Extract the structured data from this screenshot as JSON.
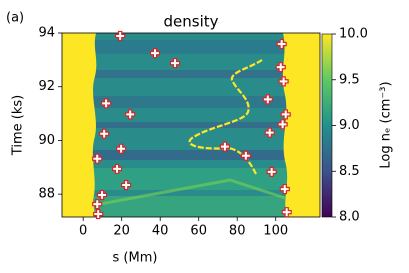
{
  "panel_label": "(a)",
  "chart_data": {
    "type": "scatter",
    "title": "density",
    "x_label": "s (Mm)",
    "y_label": "Time (ks)",
    "x": [
      19.2,
      37.3,
      47.7,
      103.1,
      102.6,
      104.1,
      95.9,
      11.9,
      24.4,
      105.2,
      103.6,
      10.9,
      96.9,
      19.7,
      73.6,
      84.5,
      7.3,
      97.9,
      17.6,
      22.3,
      104.7,
      9.8,
      7.3,
      105.7,
      7.8
    ],
    "values": [
      93.89,
      93.25,
      92.88,
      93.59,
      92.73,
      92.2,
      91.53,
      91.38,
      90.97,
      90.97,
      90.6,
      90.25,
      90.29,
      89.69,
      89.77,
      89.43,
      89.32,
      88.83,
      88.94,
      88.34,
      88.19,
      87.97,
      87.63,
      87.33,
      87.26
    ],
    "marker_color": "#d62728",
    "xlim": [
      -11,
      123
    ],
    "ylim": [
      87.15,
      94.0
    ],
    "xticks": [
      0,
      20,
      40,
      60,
      80,
      100
    ],
    "yticks": [
      88,
      90,
      92,
      94
    ],
    "colorbar": {
      "label": "Log nₑ (cm⁻³)",
      "lim": [
        8.0,
        10.0
      ],
      "ticks": [
        {
          "value": 8.0,
          "label": "8.0"
        },
        {
          "value": 8.5,
          "label": "8.5"
        },
        {
          "value": 9.0,
          "label": "9.0"
        },
        {
          "value": 9.5,
          "label": "9.5"
        },
        {
          "value": 10.0,
          "label": "10.0"
        }
      ]
    }
  }
}
